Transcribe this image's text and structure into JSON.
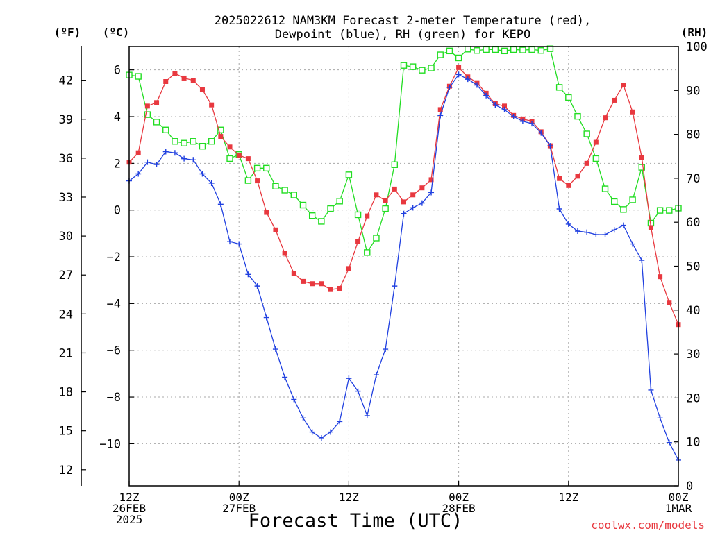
{
  "chart_data": {
    "type": "line",
    "title_lines": [
      "2025022612 NAM3KM Forecast 2-meter Temperature (red),",
      "Dewpoint (blue), RH (green) for KEPO"
    ],
    "xlabel": "Forecast Time (UTC)",
    "credit": "coolwx.com/models",
    "units": {
      "fahrenheit": "(ºF)",
      "celsius": "(ºC)",
      "rh": "(RH)"
    },
    "x_range_hours": [
      0,
      36
    ],
    "x_ticks": [
      {
        "hour": 0,
        "lines": [
          "12Z",
          "26FEB",
          "2025"
        ]
      },
      {
        "hour": 7.2,
        "lines": [
          "00Z",
          "27FEB"
        ]
      },
      {
        "hour": 14.4,
        "lines": [
          "12Z"
        ]
      },
      {
        "hour": 21.6,
        "lines": [
          "00Z",
          "28FEB"
        ]
      },
      {
        "hour": 28.8,
        "lines": [
          "12Z"
        ]
      },
      {
        "hour": 36,
        "lines": [
          "00Z",
          "1MAR"
        ]
      }
    ],
    "celsius_axis": {
      "range": [
        -11.8,
        7.0
      ],
      "ticks": [
        "6",
        "4",
        "2",
        "0",
        "−2",
        "−4",
        "−6",
        "−8",
        "−10"
      ],
      "tick_values": [
        6,
        4,
        2,
        0,
        -2,
        -4,
        -6,
        -8,
        -10
      ]
    },
    "fahrenheit_axis": {
      "ticks": [
        "42",
        "39",
        "36",
        "33",
        "30",
        "27",
        "24",
        "21",
        "18",
        "15",
        "12"
      ],
      "tick_values": [
        42,
        39,
        36,
        33,
        30,
        27,
        24,
        21,
        18,
        15,
        12
      ]
    },
    "rh_axis": {
      "range": [
        0,
        100
      ],
      "ticks": [
        "100",
        "90",
        "80",
        "70",
        "60",
        "50",
        "40",
        "30",
        "20",
        "10",
        "0"
      ],
      "tick_values": [
        100,
        90,
        80,
        70,
        60,
        50,
        40,
        30,
        20,
        10,
        0
      ]
    },
    "grid": true,
    "series": [
      {
        "name": "Temperature",
        "color": "#e8383f",
        "marker": "square-filled",
        "axis": "celsius",
        "x": [
          0,
          0.6,
          1.2,
          1.8,
          2.4,
          3.0,
          3.6,
          4.2,
          4.8,
          5.4,
          6.0,
          6.6,
          7.2,
          7.8,
          8.4,
          9.0,
          9.6,
          10.2,
          10.8,
          11.4,
          12.0,
          12.6,
          13.2,
          13.8,
          14.4,
          15.0,
          15.6,
          16.2,
          16.8,
          17.4,
          18.0,
          18.6,
          19.2,
          19.8,
          20.4,
          21.0,
          21.6,
          22.2,
          22.8,
          23.4,
          24.0,
          24.6,
          25.2,
          25.8,
          26.4,
          27.0,
          27.6,
          28.2,
          28.8,
          29.4,
          30.0,
          30.6,
          31.2,
          31.8,
          32.4,
          33.0,
          33.6,
          34.2,
          34.8,
          35.4,
          36.0
        ],
        "y": [
          2.05,
          2.45,
          4.45,
          4.6,
          5.5,
          5.85,
          5.65,
          5.55,
          5.15,
          4.5,
          3.15,
          2.7,
          2.35,
          2.2,
          1.25,
          -0.1,
          -0.85,
          -1.85,
          -2.7,
          -3.05,
          -3.15,
          -3.15,
          -3.4,
          -3.35,
          -2.5,
          -1.35,
          -0.25,
          0.65,
          0.4,
          0.9,
          0.35,
          0.65,
          0.95,
          1.3,
          4.3,
          5.3,
          6.1,
          5.7,
          5.45,
          5.0,
          4.55,
          4.45,
          4.05,
          3.9,
          3.8,
          3.35,
          2.75,
          1.35,
          1.05,
          1.45,
          2.0,
          2.9,
          3.95,
          4.7,
          5.35,
          4.2,
          2.25,
          -0.75,
          -2.85,
          -3.95,
          -4.9
        ]
      },
      {
        "name": "Dewpoint",
        "color": "#2040e0",
        "marker": "plus",
        "axis": "celsius",
        "x": [
          0,
          0.6,
          1.2,
          1.8,
          2.4,
          3.0,
          3.6,
          4.2,
          4.8,
          5.4,
          6.0,
          6.6,
          7.2,
          7.8,
          8.4,
          9.0,
          9.6,
          10.2,
          10.8,
          11.4,
          12.0,
          12.6,
          13.2,
          13.8,
          14.4,
          15.0,
          15.6,
          16.2,
          16.8,
          17.4,
          18.0,
          18.6,
          19.2,
          19.8,
          20.4,
          21.0,
          21.6,
          22.2,
          22.8,
          23.4,
          24.0,
          24.6,
          25.2,
          25.8,
          26.4,
          27.0,
          27.6,
          28.2,
          28.8,
          29.4,
          30.0,
          30.6,
          31.2,
          31.8,
          32.4,
          33.0,
          33.6,
          34.2,
          34.8,
          35.4,
          36.0
        ],
        "y": [
          1.25,
          1.55,
          2.05,
          1.95,
          2.5,
          2.45,
          2.2,
          2.15,
          1.55,
          1.15,
          0.25,
          -1.35,
          -1.45,
          -2.75,
          -3.25,
          -4.6,
          -5.95,
          -7.15,
          -8.1,
          -8.9,
          -9.5,
          -9.75,
          -9.5,
          -9.05,
          -7.2,
          -7.75,
          -8.8,
          -7.05,
          -5.95,
          -3.25,
          -0.15,
          0.1,
          0.3,
          0.75,
          4.05,
          5.25,
          5.8,
          5.6,
          5.35,
          4.9,
          4.5,
          4.3,
          4.0,
          3.8,
          3.7,
          3.3,
          2.75,
          0.05,
          -0.6,
          -0.9,
          -0.95,
          -1.05,
          -1.05,
          -0.85,
          -0.65,
          -1.45,
          -2.15,
          -7.7,
          -8.9,
          -9.95,
          -10.7
        ]
      },
      {
        "name": "RH",
        "color": "#22dd22",
        "marker": "square-open",
        "axis": "rh",
        "x": [
          0,
          0.6,
          1.2,
          1.8,
          2.4,
          3.0,
          3.6,
          4.2,
          4.8,
          5.4,
          6.0,
          6.6,
          7.2,
          7.8,
          8.4,
          9.0,
          9.6,
          10.2,
          10.8,
          11.4,
          12.0,
          12.6,
          13.2,
          13.8,
          14.4,
          15.0,
          15.6,
          16.2,
          16.8,
          17.4,
          18.0,
          18.6,
          19.2,
          19.8,
          20.4,
          21.0,
          21.6,
          22.2,
          22.8,
          23.4,
          24.0,
          24.6,
          25.2,
          25.8,
          26.4,
          27.0,
          27.6,
          28.2,
          28.8,
          29.4,
          30.0,
          30.6,
          31.2,
          31.8,
          32.4,
          33.0,
          33.6,
          34.2,
          34.8,
          35.4,
          36.0
        ],
        "y": [
          93.5,
          93.2,
          84.5,
          82.8,
          81.0,
          78.4,
          78.0,
          78.4,
          77.3,
          78.4,
          81.0,
          74.5,
          75.4,
          69.5,
          72.3,
          72.3,
          68.2,
          67.3,
          66.2,
          63.9,
          61.5,
          60.2,
          63.1,
          64.8,
          70.8,
          61.7,
          53.1,
          56.4,
          63.1,
          73.1,
          95.7,
          95.4,
          94.6,
          95.1,
          98.1,
          99.0,
          97.4,
          99.4,
          99.1,
          99.3,
          99.3,
          99.0,
          99.3,
          99.2,
          99.3,
          99.1,
          99.5,
          90.7,
          88.4,
          84.1,
          80.1,
          74.5,
          67.6,
          64.7,
          62.9,
          65.1,
          72.5,
          59.8,
          62.7,
          62.7,
          63.2
        ]
      }
    ]
  }
}
